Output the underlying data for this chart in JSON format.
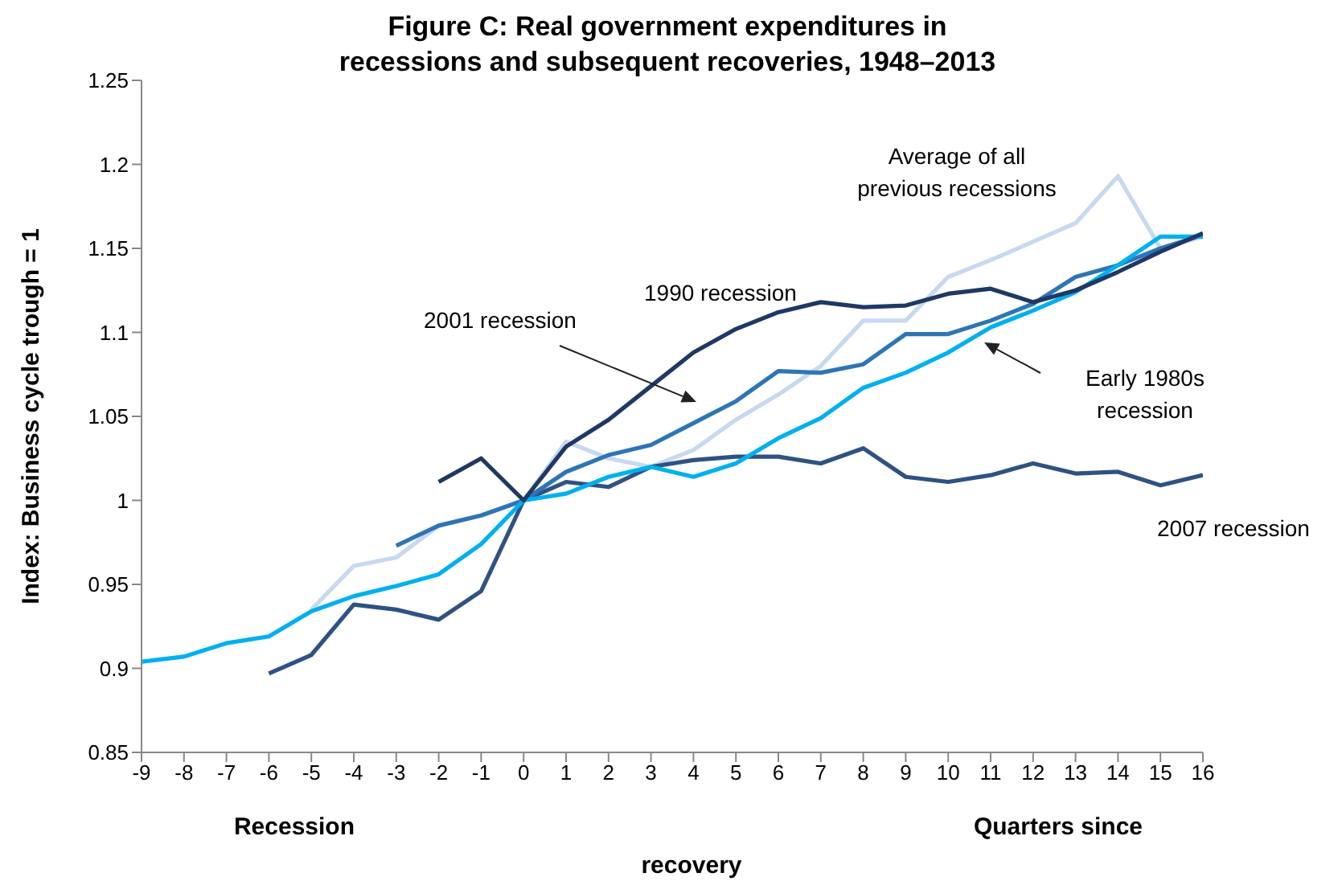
{
  "chart_data": {
    "type": "line",
    "title": "Figure C: Real government expenditures in recessions and subsequent recoveries, 1948–2013",
    "ylabel": "Index: Business cycle trough = 1",
    "xlabel": "recovery",
    "x": [
      -9,
      -8,
      -7,
      -6,
      -5,
      -4,
      -3,
      -2,
      -1,
      0,
      1,
      2,
      3,
      4,
      5,
      6,
      7,
      8,
      9,
      10,
      11,
      12,
      13,
      14,
      15,
      16
    ],
    "series": [
      {
        "color": "#c6d9f0",
        "values": [
          null,
          null,
          null,
          null,
          0.935,
          0.961,
          0.966,
          0.985,
          0.991,
          1,
          1.035,
          1.025,
          1.02,
          1.03,
          1.048,
          1.063,
          1.08,
          1.107,
          1.107,
          1.133,
          1.143,
          1.154,
          1.165,
          1.193,
          1.15,
          1.157
        ]
      },
      {
        "color": "#2f5283",
        "values": [
          null,
          null,
          null,
          0.897,
          0.908,
          0.938,
          0.935,
          0.929,
          0.946,
          1,
          1.011,
          1.008,
          1.02,
          1.024,
          1.026,
          1.026,
          1.022,
          1.031,
          1.014,
          1.011,
          1.015,
          1.022,
          1.016,
          1.017,
          1.009,
          1.015
        ]
      },
      {
        "color": "#2e75b6",
        "values": [
          null,
          null,
          null,
          null,
          null,
          null,
          0.973,
          0.985,
          0.991,
          1,
          1.017,
          1.027,
          1.033,
          1.046,
          1.059,
          1.077,
          1.076,
          1.081,
          1.099,
          1.099,
          1.107,
          1.117,
          1.133,
          1.14,
          1.15,
          1.158
        ]
      },
      {
        "color": "#00b0f0",
        "values": [
          0.904,
          0.907,
          0.915,
          0.919,
          0.934,
          0.943,
          0.949,
          0.956,
          0.974,
          1,
          1.004,
          1.014,
          1.02,
          1.014,
          1.022,
          1.037,
          1.049,
          1.067,
          1.076,
          1.088,
          1.103,
          1.113,
          1.124,
          1.14,
          1.157,
          1.157
        ]
      },
      {
        "color": "#1f3864",
        "values": [
          null,
          null,
          null,
          null,
          null,
          null,
          null,
          1.011,
          1.025,
          1,
          1.032,
          1.048,
          1.068,
          1.088,
          1.102,
          1.112,
          1.118,
          1.115,
          1.116,
          1.123,
          1.126,
          1.118,
          1.125,
          1.136,
          1.148,
          1.159
        ]
      }
    ],
    "xlim": [
      -9,
      16
    ],
    "xticks": [
      -9,
      -8,
      -7,
      -6,
      -5,
      -4,
      -3,
      -2,
      -1,
      0,
      1,
      2,
      3,
      4,
      5,
      6,
      7,
      8,
      9,
      10,
      11,
      12,
      13,
      14,
      15,
      16
    ],
    "ylim": [
      0.85,
      1.25
    ],
    "yticks": [
      0.85,
      0.9,
      0.95,
      1,
      1.05,
      1.1,
      1.15,
      1.2,
      1.25
    ],
    "grid": false,
    "legend": false,
    "marker": "none",
    "line_style": "solid",
    "annotations": [
      "Average of all previous recessions",
      {
        "text": "1990 recession",
        "x": 6,
        "y": 1.112
      },
      "2001 recession",
      "Early 1980s recession",
      {
        "text": "2007 recession",
        "x": 16,
        "y": 1.015
      },
      "Recession",
      "Quarters since"
    ]
  }
}
